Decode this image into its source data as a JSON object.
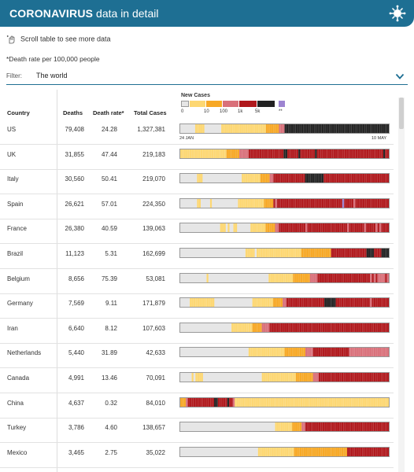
{
  "header": {
    "title_bold": "CORONAVIRUS",
    "title_rest": " data in detail",
    "icon": "virus-icon"
  },
  "scroll_hint": "Scroll table to see more data",
  "death_rate_note": "*Death rate per 100,000 people",
  "filter": {
    "label": "Filter:",
    "value": "The world"
  },
  "columns": {
    "country": "Country",
    "deaths": "Deaths",
    "death_rate": "Death rate*",
    "total_cases": "Total Cases"
  },
  "legend": {
    "title": "New Cases",
    "ticks": [
      "0",
      "10",
      "100",
      "1k",
      "5k",
      "**"
    ],
    "colors": {
      "zero": "#e6e6e6",
      "light": "#fdd772",
      "orange": "#f7a825",
      "pink": "#d9707a",
      "red": "#b0181c",
      "black": "#222222",
      "purple": "#9d84d1"
    }
  },
  "dates": {
    "start": "24 JAN",
    "end": "10 MAY"
  },
  "rows": [
    {
      "country": "US",
      "deaths": "79,408",
      "death_rate": "24.28",
      "total_cases": "1,327,381",
      "cases": "00000000111110000000001111111111111111111111112222222333BBBBBBBBBBBBBBBBBBBBBBBBBBBBBBBBBBBBBBBBBBBBBBBBBBBBBBBB"
    },
    {
      "country": "UK",
      "deaths": "31,855",
      "death_rate": "47.44",
      "total_cases": "219,183",
      "cases": "11111111111111111111111112222222333334444444444444444444BB444444B44444444B444444444444444444444444444444444444B44"
    },
    {
      "country": "Italy",
      "deaths": "30,560",
      "death_rate": "50.41",
      "total_cases": "219,070",
      "cases": "0000000001110000000000000000000001111111111222223344444444444444444BBBBBBBBBB44444444444444444444444444444444444"
    },
    {
      "country": "Spain",
      "deaths": "26,621",
      "death_rate": "57.01",
      "total_cases": "224,350",
      "cases": "000000000110000010000000000000011111111111111222224344444444444444444444444444444444444P444443444444444444444444"
    },
    {
      "country": "France",
      "deaths": "26,380",
      "death_rate": "40.59",
      "total_cases": "139,063",
      "cases": "00000000000000000000011101001100000001111111122222334444444444444434444444444444444444443444444443444443434444"
    },
    {
      "country": "Brazil",
      "deaths": "11,123",
      "death_rate": "5.31",
      "total_cases": "162,699",
      "cases": "0000000000000000000000000000000000011111011111111111111111111111122222222222222224444444444444444444BBBB4444BBBB"
    },
    {
      "country": "Belgium",
      "deaths": "8,656",
      "death_rate": "75.39",
      "total_cases": "53,081",
      "cases": "000000000000001000000000000000000000000000000001111111111111222222222333344444444444444444444444444443434333343"
    },
    {
      "country": "Germany",
      "deaths": "7,569",
      "death_rate": "9.11",
      "total_cases": "171,879",
      "cases": "0000011111111111110000000000000000000011111111111222223344444444444444444444BBBBBB4444444444444444443444444444"
    },
    {
      "country": "Iran",
      "deaths": "6,640",
      "death_rate": "8.12",
      "total_cases": "107,603",
      "cases": "00000000000000000000000000011111111111222223333444444444444444444444444444444444444444444444444444444444444444"
    },
    {
      "country": "Netherlands",
      "deaths": "5,440",
      "death_rate": "31.89",
      "total_cases": "42,633",
      "cases": "00000000000000000000000000000000000011111111111111111112222222222233334444444444444444444333333333333333333333"
    },
    {
      "country": "Canada",
      "deaths": "4,991",
      "death_rate": "13.46",
      "total_cases": "70,091",
      "cases": "00000010111100000000000000000000000000000001111111111111111112222222223334444444444444444444444444444444444444"
    },
    {
      "country": "China",
      "deaths": "4,637",
      "death_rate": "0.32",
      "total_cases": "84,010",
      "cases": "222344444444444444BB44444B4431111111111111111111111111111111111111111111111111111111111111111111111111111111111"
    },
    {
      "country": "Turkey",
      "deaths": "3,786",
      "death_rate": "4.60",
      "total_cases": "138,657",
      "cases": "00000000000000000000000000000000000000000000000000111111111222223344444444444444444444444444444444444444444444"
    },
    {
      "country": "Mexico",
      "deaths": "3,465",
      "death_rate": "2.75",
      "total_cases": "35,022",
      "cases": "00000000000000000000000000000000000000000111111111111111111122222222222222222222222222224444444444444444444444"
    }
  ]
}
